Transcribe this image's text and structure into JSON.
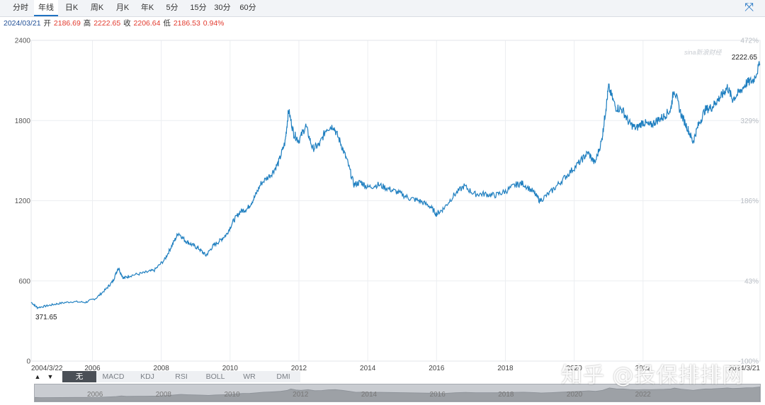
{
  "tabs": [
    "分时",
    "年线",
    "日K",
    "周K",
    "月K",
    "年K",
    "5分",
    "15分",
    "30分",
    "60分"
  ],
  "active_tab": 1,
  "expand_icon": "expand-icon",
  "info": {
    "date": "2024/03/21",
    "open_label": "开",
    "open": "2186.69",
    "high_label": "高",
    "high": "2222.65",
    "close_label": "收",
    "close": "2206.64",
    "low_label": "低",
    "low": "2186.53",
    "change": "0.94%"
  },
  "logo_text": "sina新浪财经",
  "indicators": [
    "无",
    "MACD",
    "KDJ",
    "RSI",
    "BOLL",
    "WR",
    "DMI"
  ],
  "selected_indicator": "无",
  "arrows": [
    "▲",
    "▼"
  ],
  "navigator_years": [
    "2006",
    "2008",
    "2010",
    "2012",
    "2014",
    "2016",
    "2018",
    "2020",
    "2022"
  ],
  "watermark": "知乎 @投保排排网",
  "colors": {
    "line": "#1f7fc0",
    "accent": "#1f72c2",
    "up": "#e23a2e"
  },
  "chart_data": {
    "type": "line",
    "title": "年线",
    "start_label": "2004/3/22",
    "end_label": "2024/3/21",
    "x_ticks": [
      "2006",
      "2008",
      "2010",
      "2012",
      "2014",
      "2016",
      "2018",
      "2020",
      "2022"
    ],
    "y_ticks": [
      "0",
      "600",
      "1200",
      "1800",
      "2400"
    ],
    "ylim": [
      0,
      2400
    ],
    "pct_ticks": [
      "-100%",
      "43%",
      "186%",
      "329%",
      "472%"
    ],
    "min_label": "371.65",
    "max_label": "2222.65",
    "series": [
      {
        "name": "年线",
        "points": [
          [
            2004.22,
            440
          ],
          [
            2004.4,
            400
          ],
          [
            2004.7,
            415
          ],
          [
            2005.0,
            430
          ],
          [
            2005.4,
            445
          ],
          [
            2005.8,
            440
          ],
          [
            2006.1,
            470
          ],
          [
            2006.4,
            540
          ],
          [
            2006.6,
            600
          ],
          [
            2006.75,
            700
          ],
          [
            2006.9,
            620
          ],
          [
            2007.1,
            640
          ],
          [
            2007.5,
            660
          ],
          [
            2007.8,
            680
          ],
          [
            2008.1,
            760
          ],
          [
            2008.3,
            860
          ],
          [
            2008.5,
            960
          ],
          [
            2008.7,
            900
          ],
          [
            2008.9,
            870
          ],
          [
            2009.1,
            840
          ],
          [
            2009.3,
            790
          ],
          [
            2009.5,
            860
          ],
          [
            2009.7,
            900
          ],
          [
            2009.9,
            950
          ],
          [
            2010.1,
            1050
          ],
          [
            2010.3,
            1120
          ],
          [
            2010.5,
            1140
          ],
          [
            2010.7,
            1220
          ],
          [
            2010.9,
            1330
          ],
          [
            2011.2,
            1400
          ],
          [
            2011.4,
            1480
          ],
          [
            2011.6,
            1640
          ],
          [
            2011.7,
            1880
          ],
          [
            2011.85,
            1700
          ],
          [
            2012.0,
            1650
          ],
          [
            2012.2,
            1760
          ],
          [
            2012.4,
            1590
          ],
          [
            2012.6,
            1620
          ],
          [
            2012.8,
            1740
          ],
          [
            2013.0,
            1760
          ],
          [
            2013.2,
            1640
          ],
          [
            2013.4,
            1500
          ],
          [
            2013.6,
            1320
          ],
          [
            2013.8,
            1340
          ],
          [
            2014.0,
            1300
          ],
          [
            2014.3,
            1320
          ],
          [
            2014.6,
            1290
          ],
          [
            2014.9,
            1260
          ],
          [
            2015.2,
            1220
          ],
          [
            2015.5,
            1200
          ],
          [
            2015.8,
            1160
          ],
          [
            2016.0,
            1100
          ],
          [
            2016.2,
            1140
          ],
          [
            2016.5,
            1240
          ],
          [
            2016.8,
            1310
          ],
          [
            2017.1,
            1250
          ],
          [
            2017.4,
            1250
          ],
          [
            2017.7,
            1240
          ],
          [
            2018.0,
            1270
          ],
          [
            2018.3,
            1320
          ],
          [
            2018.5,
            1330
          ],
          [
            2018.8,
            1270
          ],
          [
            2019.0,
            1200
          ],
          [
            2019.3,
            1260
          ],
          [
            2019.6,
            1340
          ],
          [
            2019.9,
            1420
          ],
          [
            2020.2,
            1500
          ],
          [
            2020.4,
            1560
          ],
          [
            2020.6,
            1480
          ],
          [
            2020.8,
            1650
          ],
          [
            2020.9,
            1850
          ],
          [
            2021.0,
            2050
          ],
          [
            2021.2,
            1900
          ],
          [
            2021.4,
            1880
          ],
          [
            2021.6,
            1780
          ],
          [
            2021.8,
            1740
          ],
          [
            2022.0,
            1790
          ],
          [
            2022.2,
            1760
          ],
          [
            2022.4,
            1800
          ],
          [
            2022.6,
            1830
          ],
          [
            2022.8,
            1880
          ],
          [
            2022.9,
            2040
          ],
          [
            2023.1,
            1850
          ],
          [
            2023.3,
            1740
          ],
          [
            2023.45,
            1640
          ],
          [
            2023.6,
            1760
          ],
          [
            2023.8,
            1880
          ],
          [
            2024.0,
            1900
          ],
          [
            2024.15,
            1950
          ],
          [
            2024.3,
            1990
          ],
          [
            2024.45,
            2050
          ],
          [
            2024.6,
            1960
          ],
          [
            2024.8,
            2010
          ],
          [
            2025.0,
            2080
          ],
          [
            2025.2,
            2100
          ],
          [
            2025.4,
            2222.65
          ]
        ]
      }
    ]
  }
}
